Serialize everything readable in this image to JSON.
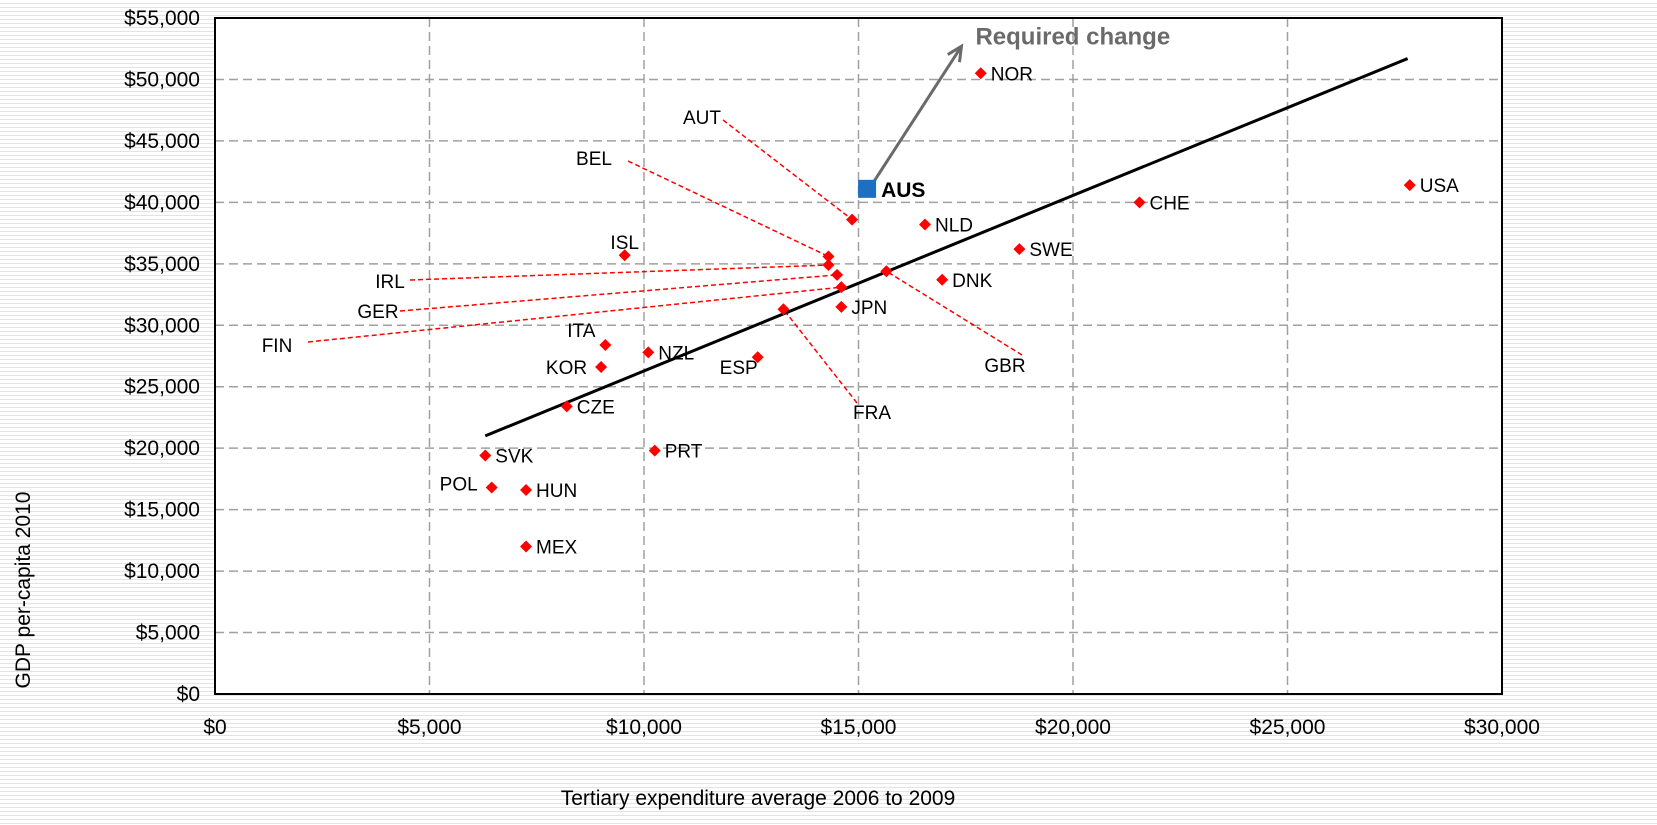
{
  "chart_data": {
    "type": "scatter",
    "xlabel": "Tertiary expenditure average 2006 to 2009",
    "ylabel": "GDP per-capita 2010",
    "xlim": [
      0,
      30000
    ],
    "ylim": [
      0,
      55000
    ],
    "x_ticks": [
      "$0",
      "$5,000",
      "$10,000",
      "$15,000",
      "$20,000",
      "$25,000",
      "$30,000"
    ],
    "y_ticks": [
      "$0",
      "$5,000",
      "$10,000",
      "$15,000",
      "$20,000",
      "$25,000",
      "$30,000",
      "$35,000",
      "$40,000",
      "$45,000",
      "$50,000",
      "$55,000"
    ],
    "grid": true,
    "points": [
      {
        "label": "NOR",
        "x": 17850,
        "y": 50500
      },
      {
        "label": "USA",
        "x": 27850,
        "y": 41400
      },
      {
        "label": "CHE",
        "x": 21550,
        "y": 40000
      },
      {
        "label": "NLD",
        "x": 16550,
        "y": 38200
      },
      {
        "label": "SWE",
        "x": 18750,
        "y": 36200
      },
      {
        "label": "DNK",
        "x": 16950,
        "y": 33700
      },
      {
        "label": "JPN",
        "x": 14600,
        "y": 31500
      },
      {
        "label": "ISL",
        "x": 9550,
        "y": 35700
      },
      {
        "label": "AUT",
        "x": 14850,
        "y": 38600
      },
      {
        "label": "BEL",
        "x": 14300,
        "y": 35600
      },
      {
        "label": "IRL",
        "x": 14300,
        "y": 34900
      },
      {
        "label": "GER",
        "x": 14500,
        "y": 34100
      },
      {
        "label": "FIN",
        "x": 14600,
        "y": 33100
      },
      {
        "label": "GBR",
        "x": 15650,
        "y": 34400
      },
      {
        "label": "FRA",
        "x": 13250,
        "y": 31300
      },
      {
        "label": "ITA",
        "x": 9100,
        "y": 28400
      },
      {
        "label": "NZL",
        "x": 10100,
        "y": 27800
      },
      {
        "label": "KOR",
        "x": 9000,
        "y": 26600
      },
      {
        "label": "ESP",
        "x": 12650,
        "y": 27400
      },
      {
        "label": "CZE",
        "x": 8200,
        "y": 23400
      },
      {
        "label": "SVK",
        "x": 6300,
        "y": 19400
      },
      {
        "label": "PRT",
        "x": 10250,
        "y": 19800
      },
      {
        "label": "POL",
        "x": 6450,
        "y": 16800
      },
      {
        "label": "HUN",
        "x": 7250,
        "y": 16600
      },
      {
        "label": "MEX",
        "x": 7250,
        "y": 12000
      }
    ],
    "highlight": {
      "label": "AUS",
      "x": 15200,
      "y": 41100,
      "color": "#1f6fc0"
    },
    "trendline": {
      "x": [
        6300,
        27800
      ],
      "y": [
        21000,
        51700
      ]
    },
    "annotation": {
      "text": "Required change",
      "from": {
        "x": 15200,
        "y": 41100
      },
      "to": {
        "x": 17400,
        "y": 52700
      }
    },
    "colors": {
      "points": "#ff0000",
      "highlight": "#1f6fc0",
      "trendline": "#000000",
      "leader_lines": "#ff0000",
      "arrow": "#6a6a6a",
      "grid": "#a0a0a0"
    }
  }
}
